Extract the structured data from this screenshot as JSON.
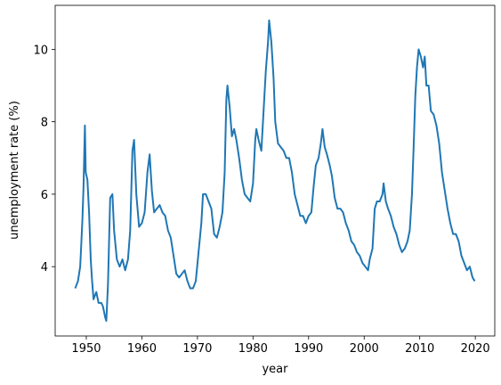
{
  "chart_data": {
    "type": "line",
    "xlabel": "year",
    "ylabel": "unemployment rate (%)",
    "xlim": [
      1944.4,
      2023.5
    ],
    "ylim": [
      2.085,
      11.215
    ],
    "xticks": [
      1950,
      1960,
      1970,
      1980,
      1990,
      2000,
      2010,
      2020
    ],
    "yticks": [
      4,
      6,
      8,
      10
    ],
    "grid": false,
    "series": [
      {
        "color": "#1f77b4",
        "x": [
          1948.0,
          1948.5,
          1948.9,
          1949.0,
          1949.3,
          1949.5,
          1949.75,
          1949.9,
          1950.2,
          1950.5,
          1950.8,
          1951.0,
          1951.3,
          1951.8,
          1952.2,
          1952.7,
          1953.0,
          1953.4,
          1953.6,
          1953.9,
          1954.3,
          1954.7,
          1955.0,
          1955.5,
          1956.0,
          1956.5,
          1957.0,
          1957.5,
          1957.9,
          1958.3,
          1958.6,
          1959.0,
          1959.5,
          1960.0,
          1960.5,
          1961.0,
          1961.4,
          1961.8,
          1962.2,
          1962.7,
          1963.2,
          1963.7,
          1964.2,
          1964.7,
          1965.2,
          1965.7,
          1966.2,
          1966.7,
          1967.2,
          1967.7,
          1968.2,
          1968.7,
          1969.2,
          1969.7,
          1970.2,
          1970.7,
          1971.0,
          1971.5,
          1972.0,
          1972.5,
          1973.0,
          1973.5,
          1974.0,
          1974.5,
          1974.9,
          1975.2,
          1975.4,
          1975.8,
          1976.2,
          1976.6,
          1977.0,
          1977.5,
          1978.0,
          1978.5,
          1979.0,
          1979.5,
          1980.0,
          1980.4,
          1980.6,
          1981.0,
          1981.5,
          1981.9,
          1982.3,
          1982.7,
          1982.9,
          1983.3,
          1983.7,
          1984.0,
          1984.5,
          1985.0,
          1985.5,
          1986.0,
          1986.5,
          1987.0,
          1987.5,
          1988.0,
          1988.5,
          1989.0,
          1989.5,
          1990.0,
          1990.5,
          1990.9,
          1991.3,
          1991.8,
          1992.2,
          1992.5,
          1992.9,
          1993.3,
          1993.8,
          1994.2,
          1994.7,
          1995.2,
          1995.7,
          1996.2,
          1996.7,
          1997.2,
          1997.7,
          1998.2,
          1998.7,
          1999.2,
          1999.7,
          2000.2,
          2000.7,
          2001.0,
          2001.5,
          2001.9,
          2002.3,
          2002.8,
          2003.3,
          2003.5,
          2003.9,
          2004.3,
          2004.8,
          2005.3,
          2005.8,
          2006.3,
          2006.8,
          2007.3,
          2007.8,
          2008.2,
          2008.6,
          2008.9,
          2009.2,
          2009.5,
          2009.8,
          2010.2,
          2010.6,
          2010.9,
          2011.2,
          2011.6,
          2012.0,
          2012.5,
          2013.0,
          2013.5,
          2014.0,
          2014.5,
          2015.0,
          2015.5,
          2016.0,
          2016.5,
          2017.0,
          2017.5,
          2018.0,
          2018.5,
          2019.0,
          2019.5,
          2019.9
        ],
        "values": [
          3.4,
          3.6,
          4.0,
          4.3,
          5.3,
          6.2,
          7.9,
          6.6,
          6.4,
          5.5,
          4.2,
          3.7,
          3.1,
          3.3,
          3.0,
          3.0,
          2.9,
          2.6,
          2.5,
          3.5,
          5.9,
          6.0,
          5.0,
          4.2,
          4.0,
          4.2,
          3.9,
          4.2,
          5.0,
          7.2,
          7.5,
          6.0,
          5.1,
          5.2,
          5.5,
          6.6,
          7.1,
          6.1,
          5.5,
          5.6,
          5.7,
          5.5,
          5.4,
          5.0,
          4.8,
          4.3,
          3.8,
          3.7,
          3.8,
          3.9,
          3.6,
          3.4,
          3.4,
          3.6,
          4.4,
          5.2,
          6.0,
          6.0,
          5.8,
          5.6,
          4.9,
          4.8,
          5.1,
          5.5,
          6.6,
          8.6,
          9.0,
          8.4,
          7.6,
          7.8,
          7.5,
          7.0,
          6.4,
          6.0,
          5.9,
          5.8,
          6.3,
          7.5,
          7.8,
          7.5,
          7.2,
          8.3,
          9.4,
          10.2,
          10.8,
          10.2,
          9.2,
          8.0,
          7.4,
          7.3,
          7.2,
          7.0,
          7.0,
          6.6,
          6.0,
          5.7,
          5.4,
          5.4,
          5.2,
          5.4,
          5.5,
          6.2,
          6.8,
          7.0,
          7.4,
          7.8,
          7.3,
          7.1,
          6.8,
          6.5,
          5.9,
          5.6,
          5.6,
          5.5,
          5.2,
          5.0,
          4.7,
          4.6,
          4.4,
          4.3,
          4.1,
          4.0,
          3.9,
          4.2,
          4.5,
          5.6,
          5.8,
          5.8,
          6.0,
          6.3,
          5.8,
          5.6,
          5.4,
          5.1,
          4.9,
          4.6,
          4.4,
          4.5,
          4.7,
          5.0,
          6.0,
          7.3,
          8.7,
          9.5,
          10.0,
          9.8,
          9.5,
          9.8,
          9.0,
          9.0,
          8.3,
          8.2,
          7.9,
          7.4,
          6.6,
          6.1,
          5.6,
          5.2,
          4.9,
          4.9,
          4.7,
          4.3,
          4.1,
          3.9,
          4.0,
          3.7,
          3.6
        ]
      }
    ]
  }
}
